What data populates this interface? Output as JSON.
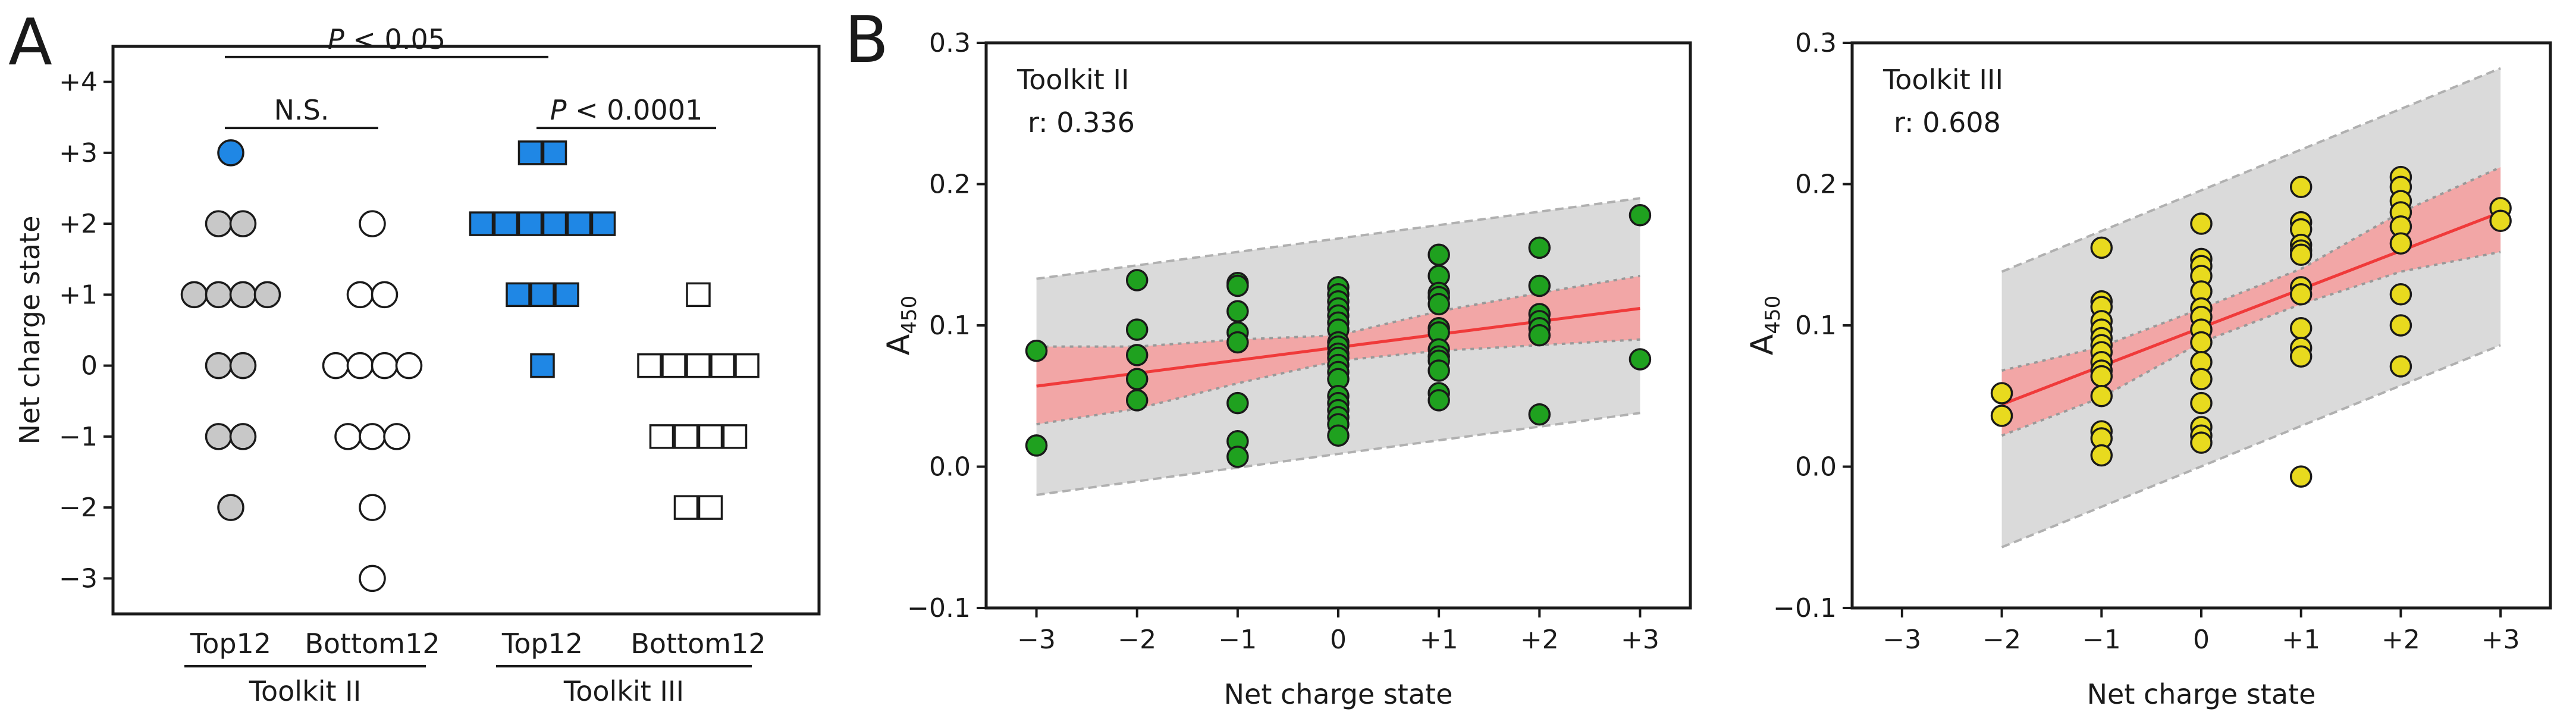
{
  "panels": {
    "a": "A",
    "b": "B"
  },
  "colors": {
    "grey_dot": "#c8c8c8",
    "blue": "#1f87e5",
    "green": "#1fa11f",
    "yellow": "#e8da1e",
    "fit_line": "#f03a3a",
    "ci_band": "#f4a0a0",
    "pi_band": "#d8d8d8"
  },
  "chart_data": [
    {
      "type": "scatter",
      "panel": "A",
      "ylabel": "Net charge state",
      "ylim": [
        -3.5,
        4.5
      ],
      "yticks": [
        {
          "v": 4,
          "label": "+4"
        },
        {
          "v": 3,
          "label": "+3"
        },
        {
          "v": 2,
          "label": "+2"
        },
        {
          "v": 1,
          "label": "+1"
        },
        {
          "v": 0,
          "label": "0"
        },
        {
          "v": -1,
          "label": "−1"
        },
        {
          "v": -2,
          "label": "−2"
        },
        {
          "v": -3,
          "label": "−3"
        }
      ],
      "groups": [
        {
          "label": "Top12",
          "toolkit": "Toolkit II",
          "marker": "circle",
          "color": "#c8c8c8",
          "highlight": {
            "3": "#1f87e5"
          },
          "counts": {
            "3": 1,
            "2": 2,
            "1": 4,
            "0": 2,
            "-1": 2,
            "-2": 1,
            "-3": 0
          }
        },
        {
          "label": "Bottom12",
          "toolkit": "Toolkit II",
          "marker": "circle",
          "color": "#ffffff",
          "counts": {
            "3": 0,
            "2": 1,
            "1": 2,
            "0": 4,
            "-1": 3,
            "-2": 1,
            "-3": 1
          }
        },
        {
          "label": "Top12",
          "toolkit": "Toolkit III",
          "marker": "square",
          "color": "#1f87e5",
          "counts": {
            "3": 2,
            "2": 6,
            "1": 3,
            "0": 1,
            "-1": 0,
            "-2": 0,
            "-3": 0
          }
        },
        {
          "label": "Bottom12",
          "toolkit": "Toolkit III",
          "marker": "square",
          "color": "#ffffff",
          "counts": {
            "3": 0,
            "2": 0,
            "1": 1,
            "0": 5,
            "-1": 4,
            "-2": 2,
            "-3": 0
          }
        }
      ],
      "toolkit_labels": [
        "Toolkit II",
        "Toolkit III"
      ],
      "annotations": [
        {
          "italic": "P",
          "text": " < 0.05",
          "from_group": 0,
          "to_group": 2,
          "y": 4.35
        },
        {
          "text": "N.S.",
          "from_group": 0,
          "to_group": 1,
          "y": 3.35
        },
        {
          "italic": "P",
          "text": " < 0.0001",
          "from_group": 2,
          "to_group": 3,
          "y": 3.35
        }
      ]
    },
    {
      "type": "scatter",
      "panel": "B",
      "title": "Toolkit II",
      "stat": "r: 0.336",
      "xlabel": "Net charge state",
      "ylabel": "A",
      "ylabel_sub": "450",
      "xlim": [
        -3.5,
        3.5
      ],
      "ylim": [
        -0.1,
        0.3
      ],
      "xticks": [
        {
          "v": -3,
          "label": "−3"
        },
        {
          "v": -2,
          "label": "−2"
        },
        {
          "v": -1,
          "label": "−1"
        },
        {
          "v": 0,
          "label": "0"
        },
        {
          "v": 1,
          "label": "+1"
        },
        {
          "v": 2,
          "label": "+2"
        },
        {
          "v": 3,
          "label": "+3"
        }
      ],
      "yticks": [
        {
          "v": 0.3,
          "label": "0.3"
        },
        {
          "v": 0.2,
          "label": "0.2"
        },
        {
          "v": 0.1,
          "label": "0.1"
        },
        {
          "v": 0.0,
          "label": "0.0"
        },
        {
          "v": -0.1,
          "label": "−0.1"
        }
      ],
      "color": "#1fa11f",
      "points": [
        [
          -3,
          0.082
        ],
        [
          -3,
          0.015
        ],
        [
          -2,
          0.132
        ],
        [
          -2,
          0.097
        ],
        [
          -2,
          0.079
        ],
        [
          -2,
          0.062
        ],
        [
          -2,
          0.047
        ],
        [
          -1,
          0.13
        ],
        [
          -1,
          0.128
        ],
        [
          -1,
          0.11
        ],
        [
          -1,
          0.095
        ],
        [
          -1,
          0.088
        ],
        [
          -1,
          0.045
        ],
        [
          -1,
          0.018
        ],
        [
          -1,
          0.007
        ],
        [
          0,
          0.127
        ],
        [
          0,
          0.122
        ],
        [
          0,
          0.117
        ],
        [
          0,
          0.112
        ],
        [
          0,
          0.107
        ],
        [
          0,
          0.102
        ],
        [
          0,
          0.097
        ],
        [
          0,
          0.088
        ],
        [
          0,
          0.085
        ],
        [
          0,
          0.08
        ],
        [
          0,
          0.077
        ],
        [
          0,
          0.072
        ],
        [
          0,
          0.067
        ],
        [
          0,
          0.062
        ],
        [
          0,
          0.05
        ],
        [
          0,
          0.045
        ],
        [
          0,
          0.04
        ],
        [
          0,
          0.035
        ],
        [
          0,
          0.03
        ],
        [
          0,
          0.022
        ],
        [
          1,
          0.15
        ],
        [
          1,
          0.135
        ],
        [
          1,
          0.123
        ],
        [
          1,
          0.12
        ],
        [
          1,
          0.115
        ],
        [
          1,
          0.098
        ],
        [
          1,
          0.095
        ],
        [
          1,
          0.083
        ],
        [
          1,
          0.078
        ],
        [
          1,
          0.075
        ],
        [
          1,
          0.068
        ],
        [
          1,
          0.052
        ],
        [
          1,
          0.047
        ],
        [
          2,
          0.155
        ],
        [
          2,
          0.128
        ],
        [
          2,
          0.108
        ],
        [
          2,
          0.103
        ],
        [
          2,
          0.098
        ],
        [
          2,
          0.093
        ],
        [
          2,
          0.037
        ],
        [
          3,
          0.178
        ],
        [
          3,
          0.076
        ]
      ],
      "fit": {
        "x": [
          -3,
          3
        ],
        "y": [
          0.057,
          0.112
        ]
      },
      "ci": {
        "x": [
          -3,
          -2,
          -1,
          0,
          1,
          2,
          3
        ],
        "upper": [
          0.085,
          0.085,
          0.09,
          0.093,
          0.11,
          0.123,
          0.135
        ],
        "lower": [
          0.03,
          0.041,
          0.059,
          0.075,
          0.082,
          0.086,
          0.09
        ]
      },
      "pi": {
        "x": [
          -3,
          3
        ],
        "upper": [
          0.133,
          0.19
        ],
        "lower": [
          -0.02,
          0.038
        ]
      }
    },
    {
      "type": "scatter",
      "panel": "B",
      "title": "Toolkit III",
      "stat": "r: 0.608",
      "xlabel": "Net charge state",
      "ylabel": "A",
      "ylabel_sub": "450",
      "xlim": [
        -3.5,
        3.5
      ],
      "ylim": [
        -0.1,
        0.3
      ],
      "xticks": [
        {
          "v": -3,
          "label": "−3"
        },
        {
          "v": -2,
          "label": "−2"
        },
        {
          "v": -1,
          "label": "−1"
        },
        {
          "v": 0,
          "label": "0"
        },
        {
          "v": 1,
          "label": "+1"
        },
        {
          "v": 2,
          "label": "+2"
        },
        {
          "v": 3,
          "label": "+3"
        }
      ],
      "yticks": [
        {
          "v": 0.3,
          "label": "0.3"
        },
        {
          "v": 0.2,
          "label": "0.2"
        },
        {
          "v": 0.1,
          "label": "0.1"
        },
        {
          "v": 0.0,
          "label": "0.0"
        },
        {
          "v": -0.1,
          "label": "−0.1"
        }
      ],
      "color": "#e8da1e",
      "points": [
        [
          -2,
          0.052
        ],
        [
          -2,
          0.036
        ],
        [
          -1,
          0.155
        ],
        [
          -1,
          0.117
        ],
        [
          -1,
          0.113
        ],
        [
          -1,
          0.103
        ],
        [
          -1,
          0.097
        ],
        [
          -1,
          0.091
        ],
        [
          -1,
          0.086
        ],
        [
          -1,
          0.081
        ],
        [
          -1,
          0.074
        ],
        [
          -1,
          0.068
        ],
        [
          -1,
          0.064
        ],
        [
          -1,
          0.05
        ],
        [
          -1,
          0.025
        ],
        [
          -1,
          0.02
        ],
        [
          -1,
          0.008
        ],
        [
          0,
          0.172
        ],
        [
          0,
          0.147
        ],
        [
          0,
          0.142
        ],
        [
          0,
          0.135
        ],
        [
          0,
          0.124
        ],
        [
          0,
          0.112
        ],
        [
          0,
          0.106
        ],
        [
          0,
          0.097
        ],
        [
          0,
          0.088
        ],
        [
          0,
          0.074
        ],
        [
          0,
          0.062
        ],
        [
          0,
          0.045
        ],
        [
          0,
          0.028
        ],
        [
          0,
          0.022
        ],
        [
          0,
          0.017
        ],
        [
          1,
          0.198
        ],
        [
          1,
          0.173
        ],
        [
          1,
          0.168
        ],
        [
          1,
          0.157
        ],
        [
          1,
          0.153
        ],
        [
          1,
          0.15
        ],
        [
          1,
          0.127
        ],
        [
          1,
          0.122
        ],
        [
          1,
          0.098
        ],
        [
          1,
          0.084
        ],
        [
          1,
          0.078
        ],
        [
          1,
          -0.007
        ],
        [
          2,
          0.205
        ],
        [
          2,
          0.198
        ],
        [
          2,
          0.188
        ],
        [
          2,
          0.18
        ],
        [
          2,
          0.17
        ],
        [
          2,
          0.158
        ],
        [
          2,
          0.122
        ],
        [
          2,
          0.1
        ],
        [
          2,
          0.071
        ],
        [
          3,
          0.183
        ],
        [
          3,
          0.174
        ]
      ],
      "fit": {
        "x": [
          -2,
          3
        ],
        "y": [
          0.044,
          0.18
        ]
      },
      "ci": {
        "x": [
          -2,
          -1,
          0,
          1,
          2,
          3
        ],
        "upper": [
          0.068,
          0.085,
          0.112,
          0.14,
          0.18,
          0.212
        ],
        "lower": [
          0.022,
          0.049,
          0.088,
          0.115,
          0.138,
          0.152
        ]
      },
      "pi": {
        "x": [
          -2,
          3
        ],
        "upper": [
          0.138,
          0.282
        ],
        "lower": [
          -0.057,
          0.086
        ]
      }
    }
  ]
}
